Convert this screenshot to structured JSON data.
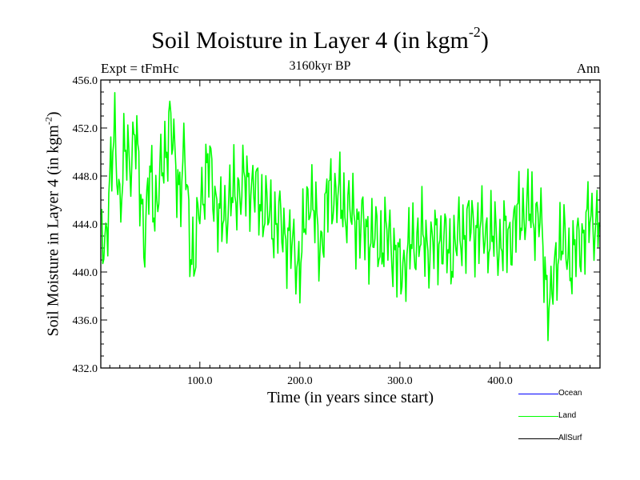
{
  "chart_data": {
    "type": "line",
    "title_main": "Soil Moisture in Layer 4 (in kgm",
    "title_sup": "-2",
    "title_end": ")",
    "subtitle": "3160kyr BP",
    "left_label": "Expt = tFmHc",
    "right_label": "Ann",
    "xlabel": "Time (in years since start)",
    "ylabel_main": "Soil Moisture in Layer 4 (in kgm",
    "ylabel_sup": "-2",
    "ylabel_end": ")",
    "xlim": [
      1,
      500
    ],
    "ylim": [
      432.0,
      456.0
    ],
    "x_ticks": [
      100,
      200,
      300,
      400
    ],
    "x_tick_labels": [
      "100.0",
      "200.0",
      "300.0",
      "400.0"
    ],
    "y_ticks": [
      432,
      436,
      440,
      444,
      448,
      452,
      456
    ],
    "y_tick_labels": [
      "432.0",
      "436.0",
      "440.0",
      "444.0",
      "448.0",
      "452.0",
      "456.0"
    ],
    "legend": [
      {
        "name": "Ocean",
        "color": "#0000ff"
      },
      {
        "name": "Land",
        "color": "#00ff00"
      },
      {
        "name": "AllSurf",
        "color": "#000000"
      }
    ],
    "series": [
      {
        "name": "Land",
        "color": "#00ff00",
        "anchors": [
          [
            1,
            443.0
          ],
          [
            5,
            441.5
          ],
          [
            10,
            448.0
          ],
          [
            15,
            451.0
          ],
          [
            20,
            446.0
          ],
          [
            25,
            450.0
          ],
          [
            30,
            449.0
          ],
          [
            35,
            452.0
          ],
          [
            40,
            447.0
          ],
          [
            45,
            443.0
          ],
          [
            50,
            448.0
          ],
          [
            55,
            445.5
          ],
          [
            60,
            447.5
          ],
          [
            65,
            449.5
          ],
          [
            70,
            453.0
          ],
          [
            75,
            449.0
          ],
          [
            80,
            447.0
          ],
          [
            85,
            449.5
          ],
          [
            90,
            443.0
          ],
          [
            95,
            440.5
          ],
          [
            100,
            446.0
          ],
          [
            110,
            449.0
          ],
          [
            120,
            444.0
          ],
          [
            130,
            446.0
          ],
          [
            140,
            447.0
          ],
          [
            150,
            447.5
          ],
          [
            160,
            446.0
          ],
          [
            170,
            444.5
          ],
          [
            180,
            444.0
          ],
          [
            190,
            442.5
          ],
          [
            200,
            440.5
          ],
          [
            205,
            444.0
          ],
          [
            210,
            447.0
          ],
          [
            220,
            442.0
          ],
          [
            230,
            447.0
          ],
          [
            240,
            446.0
          ],
          [
            250,
            445.0
          ],
          [
            260,
            444.0
          ],
          [
            270,
            443.0
          ],
          [
            280,
            442.5
          ],
          [
            290,
            443.0
          ],
          [
            300,
            440.0
          ],
          [
            310,
            442.0
          ],
          [
            320,
            443.0
          ],
          [
            330,
            442.0
          ],
          [
            340,
            443.0
          ],
          [
            350,
            441.5
          ],
          [
            360,
            443.0
          ],
          [
            370,
            444.0
          ],
          [
            380,
            443.5
          ],
          [
            390,
            443.0
          ],
          [
            400,
            442.5
          ],
          [
            410,
            443.0
          ],
          [
            420,
            445.0
          ],
          [
            430,
            445.0
          ],
          [
            440,
            444.5
          ],
          [
            445,
            440.0
          ],
          [
            450,
            437.0
          ],
          [
            455,
            440.0
          ],
          [
            460,
            443.0
          ],
          [
            470,
            441.0
          ],
          [
            480,
            442.5
          ],
          [
            490,
            444.5
          ],
          [
            500,
            444.0
          ]
        ]
      }
    ]
  }
}
